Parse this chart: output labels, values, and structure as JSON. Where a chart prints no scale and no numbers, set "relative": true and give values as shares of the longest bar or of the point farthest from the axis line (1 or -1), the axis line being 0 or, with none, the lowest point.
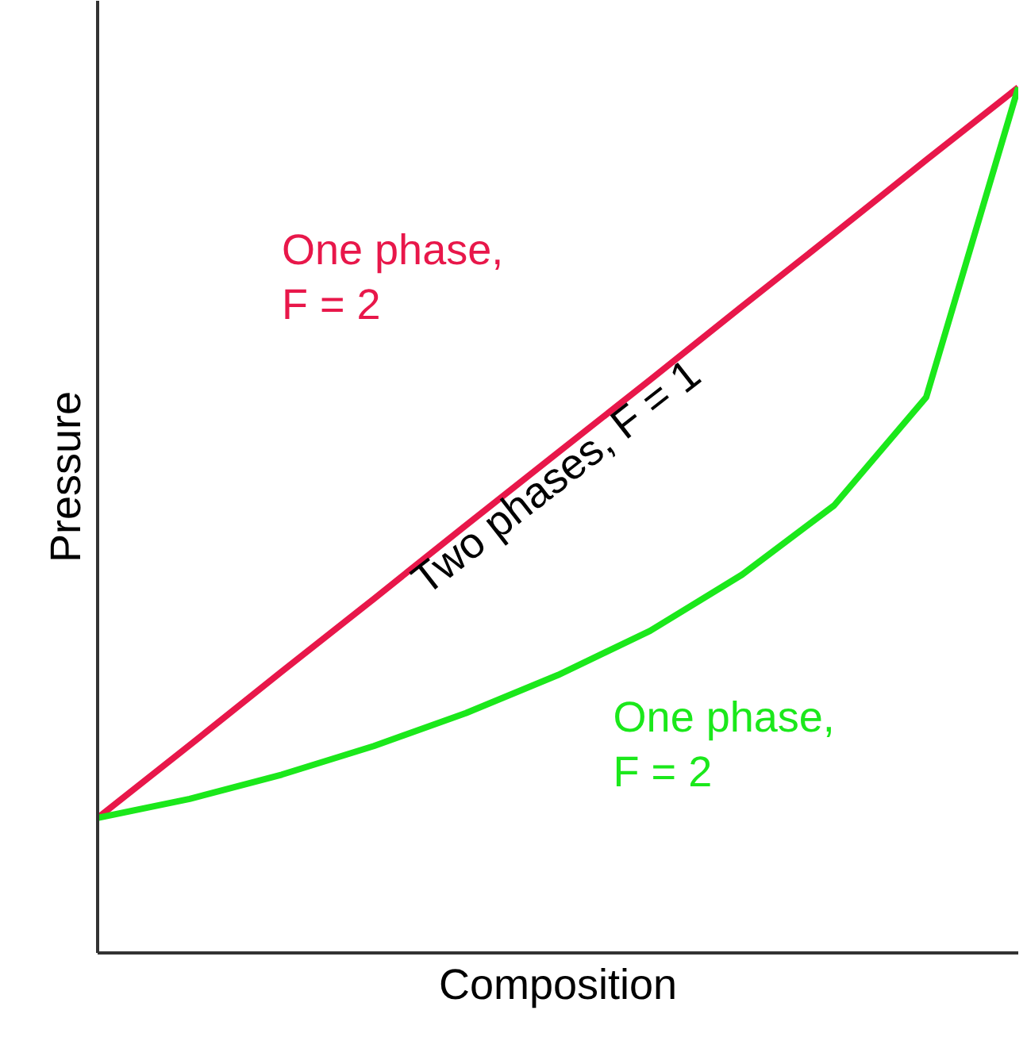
{
  "chart_data": {
    "type": "line",
    "relative": true,
    "xlabel": "Composition",
    "ylabel": "Pressure",
    "tick_labels": false,
    "marker": "none",
    "line_style": "solid",
    "categories": [
      null,
      null,
      null,
      null,
      null,
      null,
      null,
      null,
      null,
      null,
      null
    ],
    "series": [
      {
        "color": "#e8174a",
        "values": [
          0.156,
          0.24,
          0.325,
          0.409,
          0.494,
          0.578,
          0.662,
          0.747,
          0.831,
          0.916,
          1.0
        ]
      },
      {
        "color": "#1be81b",
        "values": [
          0.156,
          0.178,
          0.206,
          0.239,
          0.277,
          0.321,
          0.372,
          0.437,
          0.517,
          0.642,
          1.0
        ]
      }
    ],
    "annotations": [
      "One phase, F = 2",
      "Two phases, F = 1",
      "One phase, F = 2"
    ]
  }
}
